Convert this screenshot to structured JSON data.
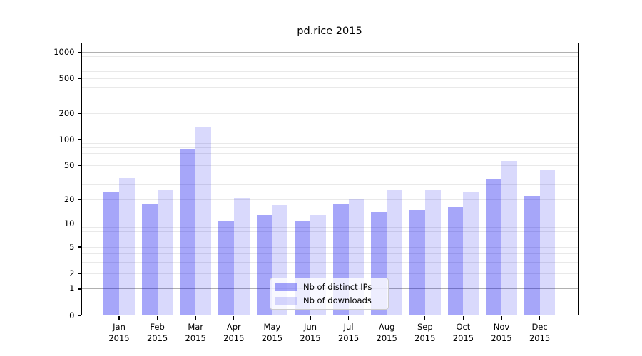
{
  "chart_data": {
    "type": "bar",
    "title": "pd.rice 2015",
    "months": [
      "Jan",
      "Feb",
      "Mar",
      "Apr",
      "May",
      "Jun",
      "Jul",
      "Aug",
      "Sep",
      "Oct",
      "Nov",
      "Dec"
    ],
    "year": "2015",
    "categories": [
      "Jan 2015",
      "Feb 2015",
      "Mar 2015",
      "Apr 2015",
      "May 2015",
      "Jun 2015",
      "Jul 2015",
      "Aug 2015",
      "Sep 2015",
      "Oct 2015",
      "Nov 2015",
      "Dec 2015"
    ],
    "series": [
      {
        "name": "Nb of distinct IPs",
        "color": "#0000ee",
        "css": "rgba(0,0,238,0.35)",
        "values": [
          25,
          18,
          79,
          11,
          13,
          11,
          18,
          14,
          15,
          16,
          35,
          22
        ]
      },
      {
        "name": "Nb of downloads",
        "color": "#0000ee",
        "css": "rgba(0,0,238,0.15)",
        "values": [
          36,
          26,
          137,
          21,
          17,
          13,
          20,
          26,
          26,
          25,
          57,
          44
        ]
      }
    ],
    "yscale": "log10(value+1)",
    "ylim": [
      0,
      1300
    ],
    "yticks": [
      1000,
      500,
      200,
      100,
      50,
      20,
      10,
      5,
      2,
      1,
      0
    ],
    "grid": {
      "major_lines": [
        1,
        10,
        100,
        1000
      ],
      "minor_lines": "2-9 per decade",
      "major_color": "#b0b0b0",
      "minor_color": "#e9e9e9",
      "grid_on": true
    },
    "legend": {
      "position": "inside lower center",
      "entries": [
        "Nb of distinct IPs",
        "Nb of downloads"
      ]
    }
  }
}
